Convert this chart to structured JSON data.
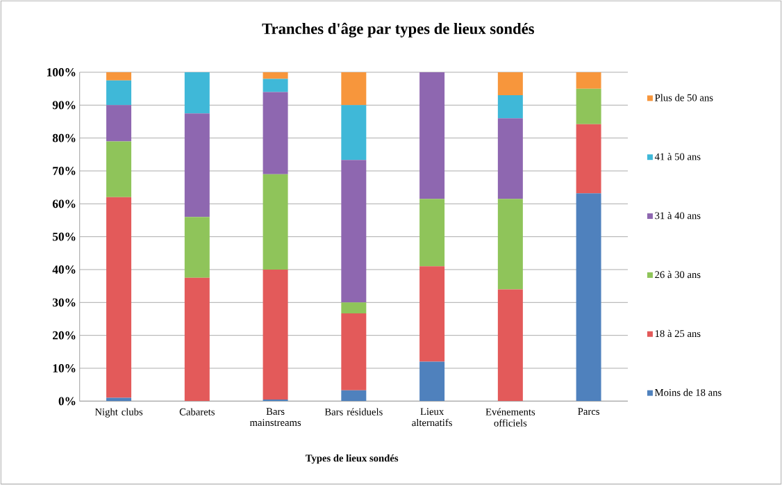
{
  "chart_data": {
    "type": "bar",
    "stacked": true,
    "title": "Tranches d'âge par types de lieux sondés",
    "xlabel": "Types de lieux sondés",
    "categories": [
      "Night clubs",
      "Cabarets",
      "Bars mainstreams",
      "Bars résiduels",
      "Lieux alternatifs",
      "Evénements officiels",
      "Parcs"
    ],
    "series": [
      {
        "name": "Moins de 18 ans",
        "color": "#4f81bd",
        "values": [
          1,
          0,
          0.5,
          3.3,
          12,
          0,
          63.2
        ]
      },
      {
        "name": "18 à 25 ans",
        "color": "#e35a5a",
        "values": [
          61,
          37.5,
          39.5,
          23.4,
          29,
          34,
          21
        ]
      },
      {
        "name": "26 à 30 ans",
        "color": "#8fc45a",
        "values": [
          17,
          18.5,
          29,
          3.3,
          20.5,
          27.5,
          10.8
        ]
      },
      {
        "name": "31 à 40 ans",
        "color": "#8e67b0",
        "values": [
          11,
          31.5,
          25,
          43.3,
          38.5,
          24.5,
          0
        ]
      },
      {
        "name": "41 à 50 ans",
        "color": "#3fb8d8",
        "values": [
          7.5,
          12.5,
          4,
          16.7,
          0,
          7,
          0
        ]
      },
      {
        "name": "Plus de 50 ans",
        "color": "#f7963c",
        "values": [
          2.5,
          0,
          2,
          10,
          0,
          7,
          5
        ]
      }
    ],
    "ylim": [
      0,
      100
    ],
    "yticks": [
      {
        "value": 0,
        "label": "0%"
      },
      {
        "value": 10,
        "label": "10%"
      },
      {
        "value": 20,
        "label": "20%"
      },
      {
        "value": 30,
        "label": "30%"
      },
      {
        "value": 40,
        "label": "40%"
      },
      {
        "value": 50,
        "label": "50%"
      },
      {
        "value": 60,
        "label": "60%"
      },
      {
        "value": 70,
        "label": "70%"
      },
      {
        "value": 80,
        "label": "80%"
      },
      {
        "value": 90,
        "label": "90%"
      },
      {
        "value": 100,
        "label": "100%"
      }
    ],
    "grid": "y",
    "legend": "right"
  }
}
